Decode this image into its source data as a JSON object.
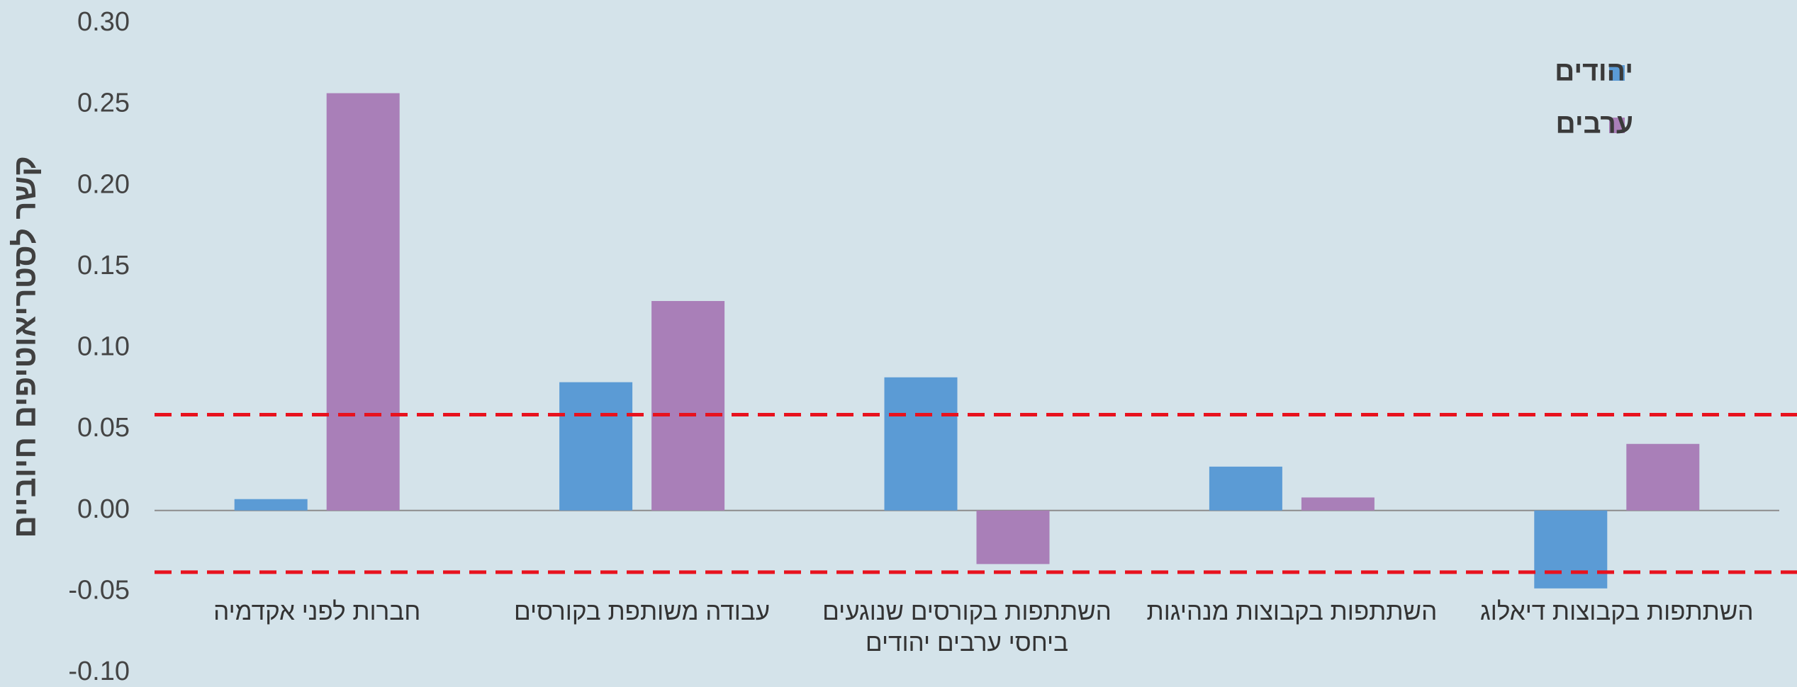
{
  "chart_data": {
    "type": "bar",
    "title": "",
    "xlabel": "",
    "ylabel": "קשר לסטריאוטיפים חיוביים",
    "ylim": [
      -0.1,
      0.3
    ],
    "yticks": [
      "0.30",
      "0.25",
      "0.20",
      "0.15",
      "0.10",
      "0.05",
      "0.00",
      "-0.05",
      "-0.10"
    ],
    "x_direction": "right-to-left",
    "categories": [
      [
        "השתתפות בקבוצות דיאלוג"
      ],
      [
        "השתתפות בקבוצות מנהיגות"
      ],
      [
        "השתתפות בקורסים שנוגעים",
        "ביחסי ערבים יהודים"
      ],
      [
        "עבודה משותפת בקורסים"
      ],
      [
        "חברות לפני אקדמיה"
      ]
    ],
    "series": [
      {
        "name": "יהודים",
        "color": "#5b9bd5",
        "values": [
          -0.048,
          0.027,
          0.082,
          0.079,
          0.007
        ]
      },
      {
        "name": "ערבים",
        "color": "#a97fb8",
        "values": [
          0.041,
          0.008,
          -0.033,
          0.129,
          0.257
        ]
      }
    ],
    "reference_lines": [
      {
        "value": 0.059,
        "color": "#e8121e",
        "style": "dashed"
      },
      {
        "value": -0.038,
        "color": "#e8121e",
        "style": "dashed"
      }
    ],
    "grid": false,
    "legend_position": "top-right"
  }
}
